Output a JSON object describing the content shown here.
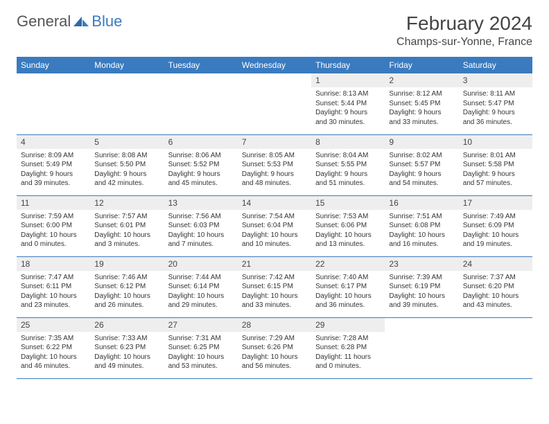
{
  "logo": {
    "text1": "General",
    "text2": "Blue"
  },
  "title": "February 2024",
  "location": "Champs-sur-Yonne, France",
  "colors": {
    "header_bg": "#3a7bbf",
    "header_fg": "#ffffff",
    "daynum_bg": "#eeeeee",
    "border": "#3a7bbf",
    "text": "#333333",
    "background": "#ffffff"
  },
  "fonts": {
    "title_size_pt": 21,
    "location_size_pt": 12,
    "header_size_pt": 9,
    "body_size_pt": 7.5
  },
  "day_headers": [
    "Sunday",
    "Monday",
    "Tuesday",
    "Wednesday",
    "Thursday",
    "Friday",
    "Saturday"
  ],
  "weeks": [
    [
      null,
      null,
      null,
      null,
      {
        "n": "1",
        "sunrise": "8:13 AM",
        "sunset": "5:44 PM",
        "dl_h": 9,
        "dl_m": 30
      },
      {
        "n": "2",
        "sunrise": "8:12 AM",
        "sunset": "5:45 PM",
        "dl_h": 9,
        "dl_m": 33
      },
      {
        "n": "3",
        "sunrise": "8:11 AM",
        "sunset": "5:47 PM",
        "dl_h": 9,
        "dl_m": 36
      }
    ],
    [
      {
        "n": "4",
        "sunrise": "8:09 AM",
        "sunset": "5:49 PM",
        "dl_h": 9,
        "dl_m": 39
      },
      {
        "n": "5",
        "sunrise": "8:08 AM",
        "sunset": "5:50 PM",
        "dl_h": 9,
        "dl_m": 42
      },
      {
        "n": "6",
        "sunrise": "8:06 AM",
        "sunset": "5:52 PM",
        "dl_h": 9,
        "dl_m": 45
      },
      {
        "n": "7",
        "sunrise": "8:05 AM",
        "sunset": "5:53 PM",
        "dl_h": 9,
        "dl_m": 48
      },
      {
        "n": "8",
        "sunrise": "8:04 AM",
        "sunset": "5:55 PM",
        "dl_h": 9,
        "dl_m": 51
      },
      {
        "n": "9",
        "sunrise": "8:02 AM",
        "sunset": "5:57 PM",
        "dl_h": 9,
        "dl_m": 54
      },
      {
        "n": "10",
        "sunrise": "8:01 AM",
        "sunset": "5:58 PM",
        "dl_h": 9,
        "dl_m": 57
      }
    ],
    [
      {
        "n": "11",
        "sunrise": "7:59 AM",
        "sunset": "6:00 PM",
        "dl_h": 10,
        "dl_m": 0
      },
      {
        "n": "12",
        "sunrise": "7:57 AM",
        "sunset": "6:01 PM",
        "dl_h": 10,
        "dl_m": 3
      },
      {
        "n": "13",
        "sunrise": "7:56 AM",
        "sunset": "6:03 PM",
        "dl_h": 10,
        "dl_m": 7
      },
      {
        "n": "14",
        "sunrise": "7:54 AM",
        "sunset": "6:04 PM",
        "dl_h": 10,
        "dl_m": 10
      },
      {
        "n": "15",
        "sunrise": "7:53 AM",
        "sunset": "6:06 PM",
        "dl_h": 10,
        "dl_m": 13
      },
      {
        "n": "16",
        "sunrise": "7:51 AM",
        "sunset": "6:08 PM",
        "dl_h": 10,
        "dl_m": 16
      },
      {
        "n": "17",
        "sunrise": "7:49 AM",
        "sunset": "6:09 PM",
        "dl_h": 10,
        "dl_m": 19
      }
    ],
    [
      {
        "n": "18",
        "sunrise": "7:47 AM",
        "sunset": "6:11 PM",
        "dl_h": 10,
        "dl_m": 23
      },
      {
        "n": "19",
        "sunrise": "7:46 AM",
        "sunset": "6:12 PM",
        "dl_h": 10,
        "dl_m": 26
      },
      {
        "n": "20",
        "sunrise": "7:44 AM",
        "sunset": "6:14 PM",
        "dl_h": 10,
        "dl_m": 29
      },
      {
        "n": "21",
        "sunrise": "7:42 AM",
        "sunset": "6:15 PM",
        "dl_h": 10,
        "dl_m": 33
      },
      {
        "n": "22",
        "sunrise": "7:40 AM",
        "sunset": "6:17 PM",
        "dl_h": 10,
        "dl_m": 36
      },
      {
        "n": "23",
        "sunrise": "7:39 AM",
        "sunset": "6:19 PM",
        "dl_h": 10,
        "dl_m": 39
      },
      {
        "n": "24",
        "sunrise": "7:37 AM",
        "sunset": "6:20 PM",
        "dl_h": 10,
        "dl_m": 43
      }
    ],
    [
      {
        "n": "25",
        "sunrise": "7:35 AM",
        "sunset": "6:22 PM",
        "dl_h": 10,
        "dl_m": 46
      },
      {
        "n": "26",
        "sunrise": "7:33 AM",
        "sunset": "6:23 PM",
        "dl_h": 10,
        "dl_m": 49
      },
      {
        "n": "27",
        "sunrise": "7:31 AM",
        "sunset": "6:25 PM",
        "dl_h": 10,
        "dl_m": 53
      },
      {
        "n": "28",
        "sunrise": "7:29 AM",
        "sunset": "6:26 PM",
        "dl_h": 10,
        "dl_m": 56
      },
      {
        "n": "29",
        "sunrise": "7:28 AM",
        "sunset": "6:28 PM",
        "dl_h": 11,
        "dl_m": 0
      },
      null,
      null
    ]
  ],
  "labels": {
    "sunrise": "Sunrise:",
    "sunset": "Sunset:",
    "daylight": "Daylight:",
    "hours": "hours",
    "and": "and",
    "minutes": "minutes."
  }
}
